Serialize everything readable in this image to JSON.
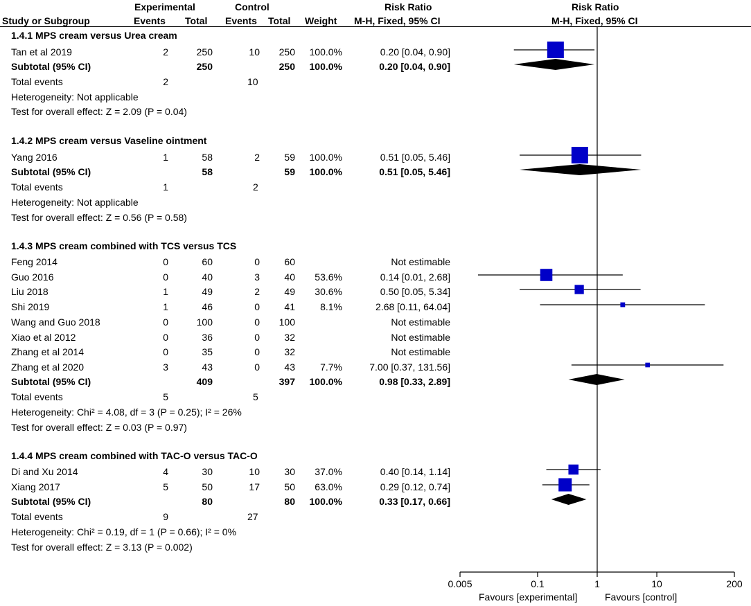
{
  "header": {
    "study": "Study or Subgroup",
    "experimental": "Experimental",
    "control": "Control",
    "events": "Events",
    "total": "Total",
    "weight": "Weight",
    "rr_title": "Risk Ratio",
    "rr_method": "M-H, Fixed, 95% CI",
    "plot_title": "Risk Ratio",
    "plot_method": "M-H, Fixed, 95% CI"
  },
  "groups": [
    {
      "title": "1.4.1 MPS cream versus Urea cream",
      "studies": [
        {
          "name": "Tan et al 2019",
          "e_events": "2",
          "e_total": "250",
          "c_events": "10",
          "c_total": "250",
          "weight": "100.0%",
          "ci": "0.20 [0.04, 0.90]"
        }
      ],
      "subtotal": {
        "label": "Subtotal (95% CI)",
        "e_total": "250",
        "c_total": "250",
        "weight": "100.0%",
        "ci": "0.20 [0.04, 0.90]"
      },
      "total_events": {
        "label": "Total events",
        "e": "2",
        "c": "10"
      },
      "heterogeneity": "Heterogeneity: Not applicable",
      "overall": "Test for overall effect: Z = 2.09 (P = 0.04)"
    },
    {
      "title": "1.4.2 MPS cream versus Vaseline ointment",
      "studies": [
        {
          "name": "Yang 2016",
          "e_events": "1",
          "e_total": "58",
          "c_events": "2",
          "c_total": "59",
          "weight": "100.0%",
          "ci": "0.51 [0.05, 5.46]"
        }
      ],
      "subtotal": {
        "label": "Subtotal (95% CI)",
        "e_total": "58",
        "c_total": "59",
        "weight": "100.0%",
        "ci": "0.51 [0.05, 5.46]"
      },
      "total_events": {
        "label": "Total events",
        "e": "1",
        "c": "2"
      },
      "heterogeneity": "Heterogeneity: Not applicable",
      "overall": "Test for overall effect: Z = 0.56 (P = 0.58)"
    },
    {
      "title": "1.4.3 MPS cream combined with TCS versus TCS",
      "studies": [
        {
          "name": "Feng 2014",
          "e_events": "0",
          "e_total": "60",
          "c_events": "0",
          "c_total": "60",
          "weight": "",
          "ci": "Not estimable"
        },
        {
          "name": "Guo 2016",
          "e_events": "0",
          "e_total": "40",
          "c_events": "3",
          "c_total": "40",
          "weight": "53.6%",
          "ci": "0.14 [0.01, 2.68]"
        },
        {
          "name": "Liu 2018",
          "e_events": "1",
          "e_total": "49",
          "c_events": "2",
          "c_total": "49",
          "weight": "30.6%",
          "ci": "0.50 [0.05, 5.34]"
        },
        {
          "name": "Shi 2019",
          "e_events": "1",
          "e_total": "46",
          "c_events": "0",
          "c_total": "41",
          "weight": "8.1%",
          "ci": "2.68 [0.11, 64.04]"
        },
        {
          "name": "Wang and Guo 2018",
          "e_events": "0",
          "e_total": "100",
          "c_events": "0",
          "c_total": "100",
          "weight": "",
          "ci": "Not estimable"
        },
        {
          "name": "Xiao et al 2012",
          "e_events": "0",
          "e_total": "36",
          "c_events": "0",
          "c_total": "32",
          "weight": "",
          "ci": "Not estimable"
        },
        {
          "name": "Zhang et al 2014",
          "e_events": "0",
          "e_total": "35",
          "c_events": "0",
          "c_total": "32",
          "weight": "",
          "ci": "Not estimable"
        },
        {
          "name": "Zhang et al 2020",
          "e_events": "3",
          "e_total": "43",
          "c_events": "0",
          "c_total": "43",
          "weight": "7.7%",
          "ci": "7.00 [0.37, 131.56]"
        }
      ],
      "subtotal": {
        "label": "Subtotal (95% CI)",
        "e_total": "409",
        "c_total": "397",
        "weight": "100.0%",
        "ci": "0.98 [0.33, 2.89]"
      },
      "total_events": {
        "label": "Total events",
        "e": "5",
        "c": "5"
      },
      "heterogeneity": "Heterogeneity: Chi² = 4.08, df = 3 (P = 0.25); I² = 26%",
      "overall": "Test for overall effect: Z = 0.03 (P = 0.97)"
    },
    {
      "title": "1.4.4 MPS cream combined with TAC-O versus TAC-O",
      "studies": [
        {
          "name": "Di and Xu 2014",
          "e_events": "4",
          "e_total": "30",
          "c_events": "10",
          "c_total": "30",
          "weight": "37.0%",
          "ci": "0.40 [0.14, 1.14]"
        },
        {
          "name": "Xiang 2017",
          "e_events": "5",
          "e_total": "50",
          "c_events": "17",
          "c_total": "50",
          "weight": "63.0%",
          "ci": "0.29 [0.12, 0.74]"
        }
      ],
      "subtotal": {
        "label": "Subtotal (95% CI)",
        "e_total": "80",
        "c_total": "80",
        "weight": "100.0%",
        "ci": "0.33 [0.17, 0.66]"
      },
      "total_events": {
        "label": "Total events",
        "e": "9",
        "c": "27"
      },
      "heterogeneity": "Heterogeneity: Chi² = 0.19, df = 1 (P = 0.66); I² = 0%",
      "overall": "Test for overall effect: Z = 3.13 (P = 0.002)"
    }
  ],
  "axis": {
    "ticks": [
      "0.005",
      "0.1",
      "1",
      "10",
      "200"
    ],
    "favours_left": "Favours [experimental]",
    "favours_right": "Favours [control]"
  },
  "chart_data": {
    "type": "forest",
    "scale": "log",
    "xlim": [
      0.005,
      200
    ],
    "tick_values": [
      0.005,
      0.1,
      1,
      10,
      200
    ],
    "null_line": 1,
    "marker_color": "#0000c8",
    "diamond_color": "#000000",
    "rows": [
      {
        "label": "Tan et al 2019",
        "kind": "study",
        "est": 0.2,
        "lo": 0.04,
        "hi": 0.9,
        "weight": 100.0
      },
      {
        "label": "Subtotal 1.4.1",
        "kind": "subtotal",
        "est": 0.2,
        "lo": 0.04,
        "hi": 0.9
      },
      {
        "label": "Yang 2016",
        "kind": "study",
        "est": 0.51,
        "lo": 0.05,
        "hi": 5.46,
        "weight": 100.0
      },
      {
        "label": "Subtotal 1.4.2",
        "kind": "subtotal",
        "est": 0.51,
        "lo": 0.05,
        "hi": 5.46
      },
      {
        "label": "Guo 2016",
        "kind": "study",
        "est": 0.14,
        "lo": 0.01,
        "hi": 2.68,
        "weight": 53.6
      },
      {
        "label": "Liu 2018",
        "kind": "study",
        "est": 0.5,
        "lo": 0.05,
        "hi": 5.34,
        "weight": 30.6
      },
      {
        "label": "Shi 2019",
        "kind": "study",
        "est": 2.68,
        "lo": 0.11,
        "hi": 64.04,
        "weight": 8.1
      },
      {
        "label": "Zhang et al 2020",
        "kind": "study",
        "est": 7.0,
        "lo": 0.37,
        "hi": 131.56,
        "weight": 7.7
      },
      {
        "label": "Subtotal 1.4.3",
        "kind": "subtotal",
        "est": 0.98,
        "lo": 0.33,
        "hi": 2.89
      },
      {
        "label": "Di and Xu 2014",
        "kind": "study",
        "est": 0.4,
        "lo": 0.14,
        "hi": 1.14,
        "weight": 37.0
      },
      {
        "label": "Xiang 2017",
        "kind": "study",
        "est": 0.29,
        "lo": 0.12,
        "hi": 0.74,
        "weight": 63.0
      },
      {
        "label": "Subtotal 1.4.4",
        "kind": "subtotal",
        "est": 0.33,
        "lo": 0.17,
        "hi": 0.66
      }
    ]
  }
}
